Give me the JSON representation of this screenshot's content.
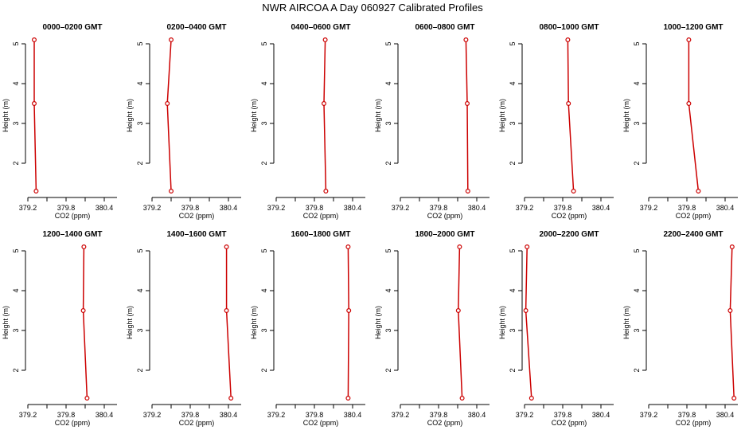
{
  "title": "NWR AIRCOA A  Day 060927  Calibrated Profiles",
  "axes": {
    "xlabel": "CO2 (ppm)",
    "ylabel": "Height (m)",
    "xlim": [
      379.2,
      380.6
    ],
    "ylim": [
      1.2,
      5.2
    ],
    "xticks": [
      379.2,
      379.8,
      380.4
    ],
    "xtick_labels": [
      "379.2",
      "379.8",
      "380.4"
    ],
    "yticks": [
      2,
      3,
      4,
      5
    ],
    "ytick_labels": [
      "2",
      "3",
      "4",
      "5"
    ],
    "grid": false,
    "line_color": "#cc0000"
  },
  "chart_data": [
    {
      "type": "line",
      "title": "0000–0200 GMT",
      "x": [
        379.3,
        379.3,
        379.33
      ],
      "y": [
        5.1,
        3.5,
        1.3
      ]
    },
    {
      "type": "line",
      "title": "0200–0400 GMT",
      "x": [
        379.5,
        379.44,
        379.5
      ],
      "y": [
        5.1,
        3.5,
        1.3
      ]
    },
    {
      "type": "line",
      "title": "0400–0600 GMT",
      "x": [
        379.97,
        379.95,
        379.98
      ],
      "y": [
        5.1,
        3.5,
        1.3
      ]
    },
    {
      "type": "line",
      "title": "0600–0800 GMT",
      "x": [
        380.23,
        380.25,
        380.26
      ],
      "y": [
        5.1,
        3.5,
        1.3
      ]
    },
    {
      "type": "line",
      "title": "0800–1000 GMT",
      "x": [
        379.88,
        379.89,
        379.97
      ],
      "y": [
        5.1,
        3.5,
        1.3
      ]
    },
    {
      "type": "line",
      "title": "1000–1200 GMT",
      "x": [
        379.83,
        379.83,
        379.98
      ],
      "y": [
        5.1,
        3.5,
        1.3
      ]
    },
    {
      "type": "line",
      "title": "1200–1400 GMT",
      "x": [
        380.08,
        380.07,
        380.13
      ],
      "y": [
        5.1,
        3.5,
        1.3
      ]
    },
    {
      "type": "line",
      "title": "1400–1600 GMT",
      "x": [
        380.37,
        380.37,
        380.44
      ],
      "y": [
        5.1,
        3.5,
        1.3
      ]
    },
    {
      "type": "line",
      "title": "1600–1800 GMT",
      "x": [
        380.33,
        380.34,
        380.33
      ],
      "y": [
        5.1,
        3.5,
        1.3
      ]
    },
    {
      "type": "line",
      "title": "1800–2000 GMT",
      "x": [
        380.13,
        380.11,
        380.17
      ],
      "y": [
        5.1,
        3.5,
        1.3
      ]
    },
    {
      "type": "line",
      "title": "2000–2200 GMT",
      "x": [
        379.24,
        379.22,
        379.31
      ],
      "y": [
        5.1,
        3.5,
        1.3
      ]
    },
    {
      "type": "line",
      "title": "2200–2400 GMT",
      "x": [
        380.51,
        380.48,
        380.54
      ],
      "y": [
        5.1,
        3.5,
        1.3
      ]
    }
  ]
}
